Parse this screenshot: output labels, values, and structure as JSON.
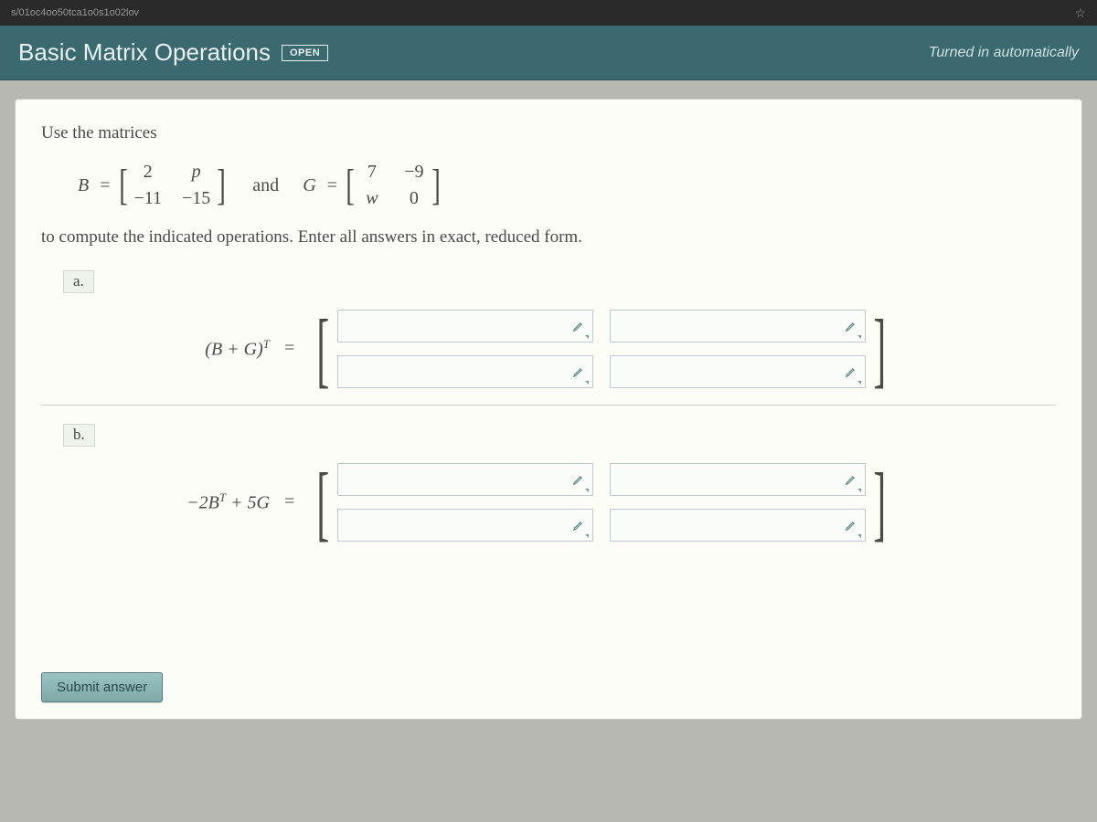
{
  "browser": {
    "url_fragment": "s/01oc4oo50tca1o0s1o02lov"
  },
  "header": {
    "title": "Basic Matrix Operations",
    "badge": "OPEN",
    "status": "Turned in automatically"
  },
  "problem": {
    "intro": "Use the matrices",
    "B_label": "B",
    "G_label": "G",
    "and_word": "and",
    "equals": "=",
    "B_matrix": [
      [
        "2",
        "p"
      ],
      [
        "−11",
        "−15"
      ]
    ],
    "G_matrix": [
      [
        "7",
        "−9"
      ],
      [
        "w",
        "0"
      ]
    ],
    "instruction": "to compute the indicated operations. Enter all answers in exact, reduced form.",
    "parts": {
      "a": {
        "label": "a.",
        "expression_html": "(B + G)<sup>T</sup>"
      },
      "b": {
        "label": "b.",
        "expression_html": "−2B<sup>T</sup> + 5G"
      }
    },
    "submit_label": "Submit answer"
  },
  "style": {
    "header_bg": "#3a6a6f",
    "card_bg": "#fdfdf8",
    "page_bg": "#b8b8b2",
    "input_border": "#bfc8cf",
    "submit_bg": "#8fb8b8"
  }
}
